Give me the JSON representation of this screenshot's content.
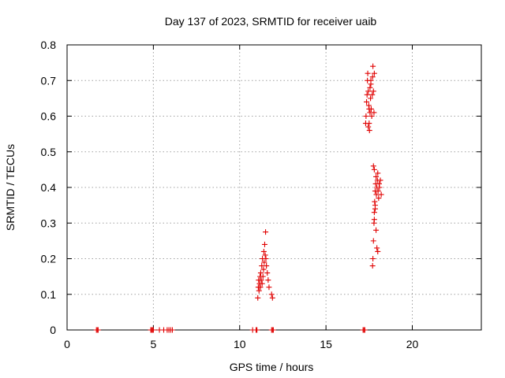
{
  "chart_data": {
    "type": "scatter",
    "title": "Day 137 of 2023, SRMTID for receiver uaib",
    "xlabel": "GPS time / hours",
    "ylabel": "SRMTID / TECUs",
    "xlim": [
      0,
      24
    ],
    "ylim": [
      0,
      0.8
    ],
    "xticks": [
      0,
      5,
      10,
      15,
      20
    ],
    "yticks": [
      0,
      0.1,
      0.2,
      0.3,
      0.4,
      0.5,
      0.6,
      0.7,
      0.8
    ],
    "grid": true,
    "marker": "plus",
    "colors": {
      "points": "#e00000"
    },
    "series": [
      {
        "name": "SRMTID",
        "x": [
          1.7,
          1.75,
          1.8,
          4.85,
          4.9,
          4.95,
          5.0,
          5.35,
          5.6,
          5.8,
          5.9,
          6.0,
          6.1,
          10.75,
          10.95,
          11.0,
          11.85,
          11.9,
          11.95,
          17.15,
          17.2,
          17.25,
          11.05,
          11.08,
          11.1,
          11.12,
          11.15,
          11.18,
          11.2,
          11.22,
          11.25,
          11.28,
          11.3,
          11.32,
          11.35,
          11.38,
          11.4,
          11.42,
          11.45,
          11.48,
          11.5,
          11.52,
          11.55,
          11.6,
          11.65,
          11.7,
          11.85,
          11.9,
          17.3,
          17.32,
          17.35,
          17.38,
          17.4,
          17.42,
          17.45,
          17.48,
          17.5,
          17.52,
          17.55,
          17.58,
          17.6,
          17.62,
          17.65,
          17.68,
          17.7,
          17.72,
          17.75,
          17.78,
          17.8,
          17.45,
          17.5,
          17.55,
          17.6,
          17.7,
          17.72,
          17.75,
          17.78,
          17.8,
          17.82,
          17.85,
          17.88,
          17.9,
          17.92,
          17.95,
          17.98,
          18.0,
          18.02,
          18.05,
          18.08,
          18.1,
          18.15,
          18.2,
          17.75,
          17.8,
          17.85,
          17.9,
          17.95,
          18.0,
          17.8,
          17.85
        ],
        "y": [
          0,
          0,
          0,
          0,
          0,
          0,
          0,
          0,
          0,
          0,
          0,
          0,
          0,
          0,
          0,
          0,
          0,
          0,
          0,
          0,
          0,
          0,
          0.09,
          0.12,
          0.14,
          0.11,
          0.13,
          0.15,
          0.12,
          0.16,
          0.14,
          0.18,
          0.13,
          0.2,
          0.15,
          0.17,
          0.22,
          0.19,
          0.24,
          0.21,
          0.275,
          0.2,
          0.18,
          0.16,
          0.14,
          0.12,
          0.1,
          0.09,
          0.58,
          0.6,
          0.64,
          0.66,
          0.7,
          0.72,
          0.67,
          0.63,
          0.58,
          0.56,
          0.61,
          0.65,
          0.69,
          0.62,
          0.6,
          0.66,
          0.71,
          0.74,
          0.67,
          0.61,
          0.72,
          0.57,
          0.62,
          0.68,
          0.7,
          0.18,
          0.2,
          0.25,
          0.3,
          0.33,
          0.36,
          0.39,
          0.41,
          0.43,
          0.38,
          0.4,
          0.42,
          0.44,
          0.39,
          0.37,
          0.41,
          0.4,
          0.42,
          0.38,
          0.46,
          0.45,
          0.35,
          0.28,
          0.23,
          0.22,
          0.31,
          0.34
        ]
      }
    ]
  }
}
